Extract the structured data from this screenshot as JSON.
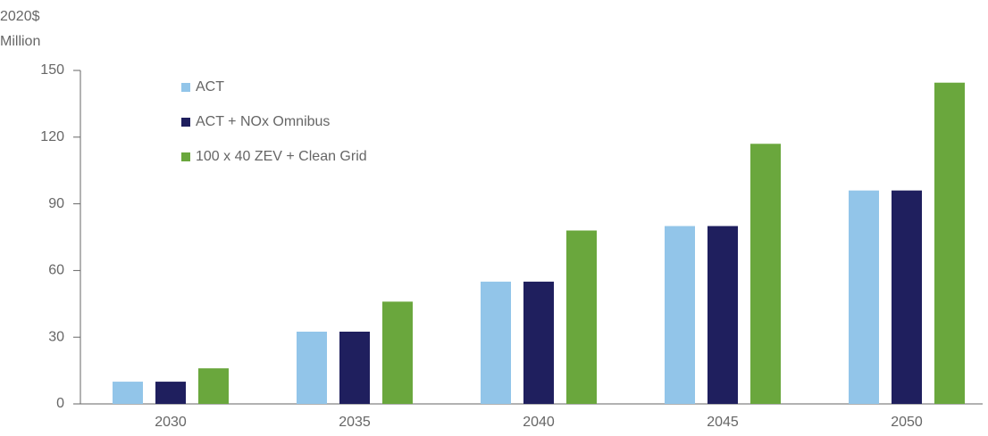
{
  "chart_data": {
    "type": "bar",
    "y_label": [
      "2020$",
      "Million"
    ],
    "categories": [
      "2030",
      "2035",
      "2040",
      "2045",
      "2050"
    ],
    "series": [
      {
        "name": "ACT",
        "color": "#92c5e9",
        "values": [
          10,
          32.5,
          55,
          80,
          96
        ]
      },
      {
        "name": "ACT + NOx Omnibus",
        "color": "#1f1f5e",
        "values": [
          10,
          32.5,
          55,
          80,
          96
        ]
      },
      {
        "name": "100 x 40 ZEV + Clean Grid",
        "color": "#6aa73d",
        "values": [
          16,
          46,
          78,
          117,
          144.5
        ]
      }
    ],
    "ylim": [
      0,
      150
    ],
    "yticks": [
      0,
      30,
      60,
      90,
      120,
      150
    ],
    "grid": false,
    "legend": "top-left"
  }
}
